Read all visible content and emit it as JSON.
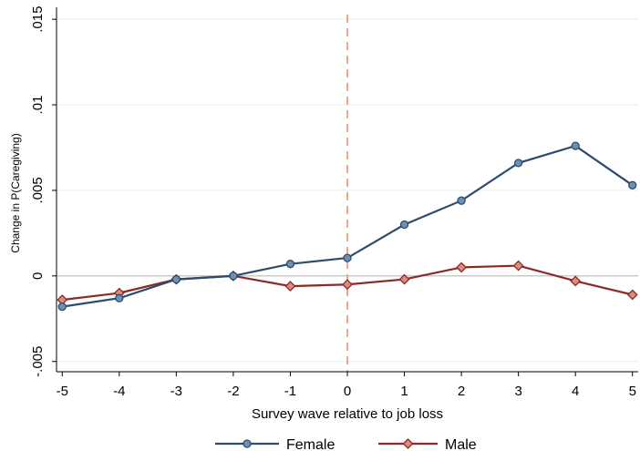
{
  "chart_data": {
    "type": "line",
    "title": "",
    "xlabel": "Survey wave relative to job loss",
    "ylabel": "Change in P(Caregiving)",
    "x": [
      -5,
      -4,
      -3,
      -2,
      -1,
      0,
      1,
      2,
      3,
      4,
      5
    ],
    "xticks": [
      -5,
      -4,
      -3,
      -2,
      -1,
      0,
      1,
      2,
      3,
      4,
      5
    ],
    "xtick_labels": [
      "-5",
      "-4",
      "-3",
      "-2",
      "-1",
      "0",
      "1",
      "2",
      "3",
      "4",
      "5"
    ],
    "xlim": [
      -5.1,
      5.1
    ],
    "yticks": [
      -0.005,
      0,
      0.005,
      0.01,
      0.015
    ],
    "ytick_labels": [
      "-.005",
      "0",
      ".005",
      ".01",
      ".015"
    ],
    "ylim": [
      -0.0056,
      0.0157
    ],
    "grid": true,
    "reference_lines": {
      "vertical_x": 0,
      "vertical_color": "#f4a582",
      "horizontal_y": 0,
      "horizontal_color": "#b8b8b8"
    },
    "legend": {
      "position": "bottom-center"
    },
    "series": [
      {
        "name": "Female",
        "color": "#2b4c6f",
        "marker": "circle",
        "values": [
          -0.0018,
          -0.0013,
          -0.0002,
          0.0,
          0.0007,
          0.00105,
          0.003,
          0.0044,
          0.0066,
          0.0076,
          0.0053
        ]
      },
      {
        "name": "Male",
        "color": "#8b2a24",
        "marker": "diamond",
        "values": [
          -0.0014,
          -0.001,
          -0.0002,
          0.0,
          -0.0006,
          -0.0005,
          -0.0002,
          0.0005,
          0.0006,
          -0.0003,
          -0.0011
        ]
      }
    ]
  }
}
